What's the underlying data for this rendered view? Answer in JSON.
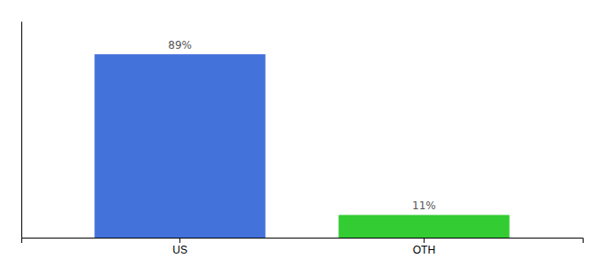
{
  "chart_data": {
    "type": "bar",
    "categories": [
      "US",
      "OTH"
    ],
    "values": [
      89,
      11
    ],
    "value_labels": [
      "89%",
      "11%"
    ],
    "colors": [
      "#4472db",
      "#33cc33"
    ],
    "ylim": [
      0,
      105
    ],
    "data_labels": true,
    "tick_labels": "x",
    "grid": false
  }
}
